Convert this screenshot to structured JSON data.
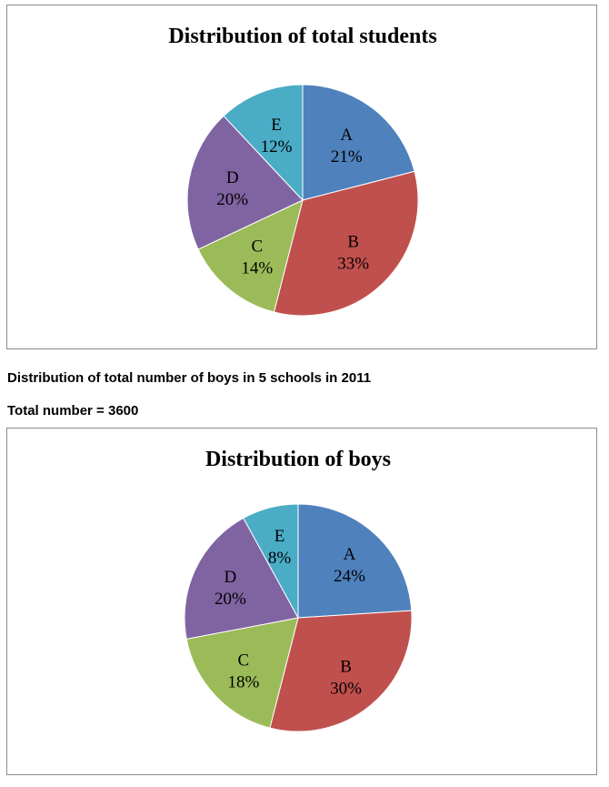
{
  "captions": {
    "boys_distribution": "Distribution of total number of boys in 5 schools in 2011",
    "total_number": "Total number = 3600"
  },
  "colors": {
    "A": "#4F81BD",
    "B": "#C0504D",
    "C": "#9BBB59",
    "D": "#8064A2",
    "E": "#4BACC6"
  },
  "chart_data": [
    {
      "type": "pie",
      "title": "Distribution of total students",
      "categories": [
        "A",
        "B",
        "C",
        "D",
        "E"
      ],
      "values": [
        21,
        33,
        14,
        20,
        12
      ],
      "labels": [
        "21%",
        "33%",
        "14%",
        "20%",
        "12%"
      ],
      "unit": "%"
    },
    {
      "type": "pie",
      "title": "Distribution of boys",
      "categories": [
        "A",
        "B",
        "C",
        "D",
        "E"
      ],
      "values": [
        24,
        30,
        18,
        20,
        8
      ],
      "labels": [
        "24%",
        "30%",
        "18%",
        "20%",
        "8%"
      ],
      "unit": "%"
    }
  ]
}
